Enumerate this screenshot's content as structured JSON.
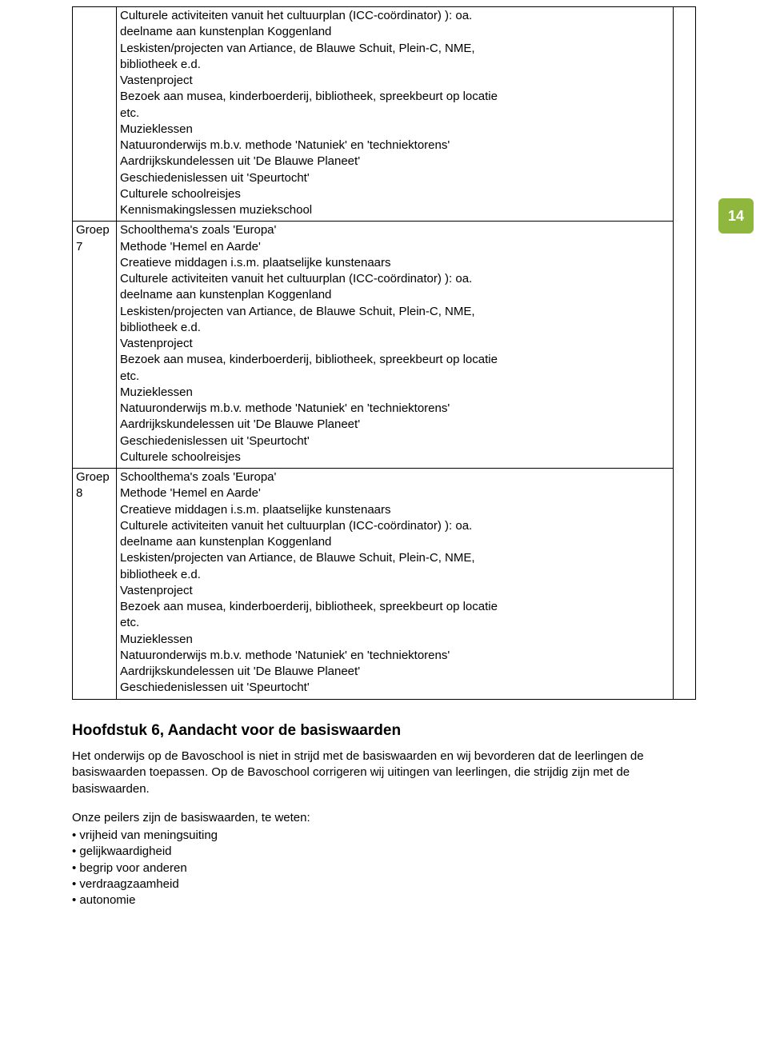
{
  "page_number": "14",
  "badge_bg": "#8fb73e",
  "table": {
    "rows": [
      {
        "label": "",
        "content": [
          "Culturele activiteiten vanuit het cultuurplan (ICC-coördinator) ): oa.",
          "deelname aan kunstenplan Koggenland",
          "Leskisten/projecten van Artiance, de Blauwe Schuit, Plein-C, NME,",
          "bibliotheek e.d.",
          "Vastenproject",
          "Bezoek aan musea, kinderboerderij, bibliotheek, spreekbeurt op locatie",
          "etc.",
          "Muzieklessen",
          "Natuuronderwijs m.b.v. methode 'Natuniek' en 'techniektorens'",
          "Aardrijkskundelessen uit 'De Blauwe Planeet'",
          "Geschiedenislessen uit 'Speurtocht'",
          "Culturele schoolreisjes",
          "Kennismakingslessen muziekschool"
        ]
      },
      {
        "label": "Groep 7",
        "content": [
          "Schoolthema's zoals 'Europa'",
          "Methode 'Hemel en Aarde'",
          "Creatieve middagen i.s.m. plaatselijke kunstenaars",
          "Culturele activiteiten vanuit het cultuurplan (ICC-coördinator) ): oa.",
          "deelname aan kunstenplan Koggenland",
          "Leskisten/projecten van Artiance, de Blauwe Schuit, Plein-C, NME,",
          "bibliotheek e.d.",
          "Vastenproject",
          "Bezoek aan musea, kinderboerderij, bibliotheek, spreekbeurt op locatie",
          "etc.",
          "Muzieklessen",
          "Natuuronderwijs m.b.v. methode 'Natuniek' en 'techniektorens'",
          "Aardrijkskundelessen uit 'De Blauwe Planeet'",
          "Geschiedenislessen uit 'Speurtocht'",
          "Culturele schoolreisjes"
        ]
      },
      {
        "label": "Groep 8",
        "content": [
          "Schoolthema's zoals 'Europa'",
          "Methode 'Hemel en Aarde'",
          "Creatieve middagen i.s.m. plaatselijke kunstenaars",
          "Culturele activiteiten vanuit het cultuurplan (ICC-coördinator) ): oa.",
          "deelname aan kunstenplan Koggenland",
          "Leskisten/projecten van Artiance, de Blauwe Schuit, Plein-C, NME,",
          "bibliotheek e.d.",
          "Vastenproject",
          "Bezoek aan musea, kinderboerderij, bibliotheek, spreekbeurt op locatie",
          "etc.",
          "Muzieklessen",
          "Natuuronderwijs m.b.v. methode 'Natuniek' en 'techniektorens'",
          "Aardrijkskundelessen uit 'De Blauwe Planeet'",
          "Geschiedenislessen uit 'Speurtocht'"
        ]
      }
    ]
  },
  "chapter_title": "Hoofdstuk 6, Aandacht voor de basiswaarden",
  "paragraph": "Het onderwijs op de Bavoschool is niet in strijd met de basiswaarden en wij bevorderen dat de leerlingen de basiswaarden toepassen. Op de Bavoschool corrigeren wij uitingen van leerlingen, die strijdig zijn met de basiswaarden.",
  "list_intro": "Onze peilers zijn de basiswaarden, te weten:",
  "list_items": [
    "vrijheid van meningsuiting",
    "gelijkwaardigheid",
    "begrip voor anderen",
    "verdraagzaamheid",
    "autonomie"
  ]
}
